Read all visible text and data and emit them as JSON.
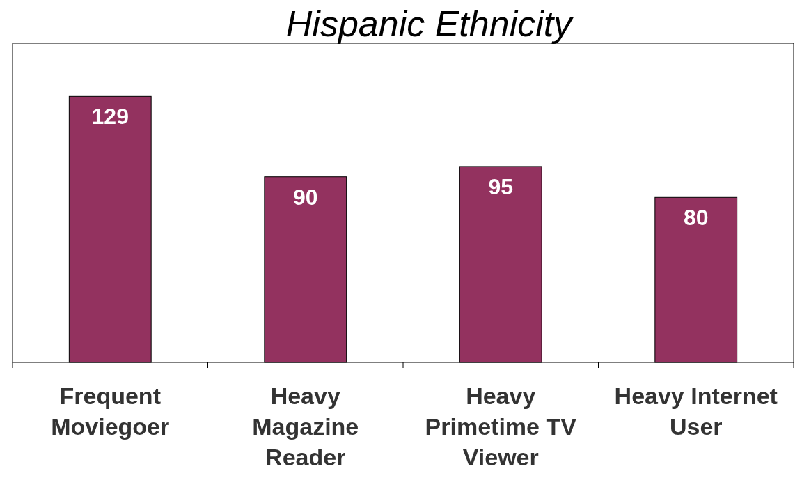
{
  "chart_data": {
    "type": "bar",
    "title": "Hispanic Ethnicity",
    "categories": [
      "Frequent\nMoviegoer",
      "Heavy\nMagazine\nReader",
      "Heavy\nPrimetime TV\nViewer",
      "Heavy Internet\nUser"
    ],
    "values": [
      129,
      90,
      95,
      80
    ],
    "color": "#93325f",
    "data_labels": true
  }
}
